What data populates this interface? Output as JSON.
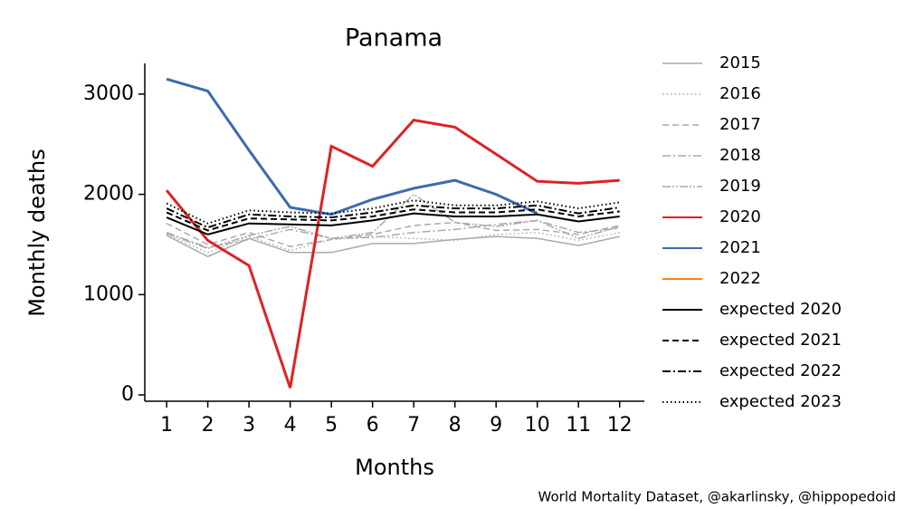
{
  "chart_data": {
    "type": "line",
    "title": "Panama",
    "xlabel": "Months",
    "ylabel": "Monthly deaths",
    "source": "World Mortality Dataset, @akarlinsky, @hippopedoid",
    "x": [
      1,
      2,
      3,
      4,
      5,
      6,
      7,
      8,
      9,
      10,
      11,
      12
    ],
    "xlim": [
      0.47,
      12.6
    ],
    "xticks": [
      1,
      2,
      3,
      4,
      5,
      6,
      7,
      8,
      9,
      10,
      11,
      12
    ],
    "ylim": [
      -63,
      3306
    ],
    "yticks": [
      0,
      1000,
      2000,
      3000
    ],
    "legend": "outside right",
    "series": [
      {
        "name": "2015",
        "color": "#aaaaaa",
        "style": "solid",
        "linewidth": 1.5,
        "values": [
          1590,
          1380,
          1560,
          1420,
          1420,
          1510,
          1510,
          1550,
          1580,
          1560,
          1490,
          1580
        ]
      },
      {
        "name": "2016",
        "color": "#aaaaaa",
        "style": "dotted",
        "linewidth": 1.5,
        "values": [
          1600,
          1420,
          1580,
          1440,
          1550,
          1580,
          1560,
          1540,
          1600,
          1620,
          1540,
          1620
        ]
      },
      {
        "name": "2017",
        "color": "#aaaaaa",
        "style": "dashed",
        "linewidth": 1.5,
        "values": [
          1710,
          1500,
          1620,
          1480,
          1550,
          1600,
          1690,
          1720,
          1640,
          1650,
          1600,
          1690
        ]
      },
      {
        "name": "2018",
        "color": "#aaaaaa",
        "style": "dashdot",
        "linewidth": 1.5,
        "values": [
          1620,
          1470,
          1550,
          1650,
          1560,
          1570,
          1620,
          1650,
          1700,
          1740,
          1620,
          1660
        ]
      },
      {
        "name": "2019",
        "color": "#aaaaaa",
        "style": "dashdotdot",
        "linewidth": 1.5,
        "values": [
          1610,
          1460,
          1590,
          1680,
          1560,
          1620,
          2000,
          1720,
          1680,
          1740,
          1560,
          1680
        ]
      },
      {
        "name": "2020",
        "color": "#dd2222",
        "style": "solid",
        "linewidth": 3,
        "values": [
          2040,
          1540,
          1290,
          70,
          2480,
          2280,
          2740,
          2670,
          2400,
          2130,
          2110,
          2140
        ]
      },
      {
        "name": "2021",
        "color": "#3a6bb0",
        "style": "solid",
        "linewidth": 3,
        "values": [
          3150,
          3030,
          2440,
          1870,
          1800,
          1950,
          2060,
          2140,
          2000,
          1810,
          null,
          null
        ]
      },
      {
        "name": "2022",
        "color": "#ff7f0e",
        "style": "solid",
        "linewidth": 3,
        "values": [
          null,
          null,
          null,
          null,
          null,
          null,
          null,
          null,
          null,
          null,
          null,
          null
        ]
      },
      {
        "name": "expected 2020",
        "color": "#000000",
        "style": "solid",
        "linewidth": 2,
        "values": [
          1770,
          1600,
          1710,
          1700,
          1690,
          1740,
          1810,
          1780,
          1780,
          1800,
          1730,
          1780
        ]
      },
      {
        "name": "expected 2021",
        "color": "#000000",
        "style": "dashed",
        "linewidth": 2,
        "values": [
          1820,
          1640,
          1760,
          1750,
          1740,
          1780,
          1850,
          1820,
          1820,
          1850,
          1780,
          1830
        ]
      },
      {
        "name": "expected 2022",
        "color": "#000000",
        "style": "dashdot",
        "linewidth": 2,
        "values": [
          1860,
          1670,
          1800,
          1780,
          1770,
          1820,
          1890,
          1860,
          1860,
          1890,
          1810,
          1870
        ]
      },
      {
        "name": "expected 2023",
        "color": "#000000",
        "style": "dotted",
        "linewidth": 2,
        "values": [
          1910,
          1710,
          1840,
          1820,
          1810,
          1860,
          1940,
          1890,
          1890,
          1930,
          1860,
          1920
        ]
      }
    ]
  }
}
